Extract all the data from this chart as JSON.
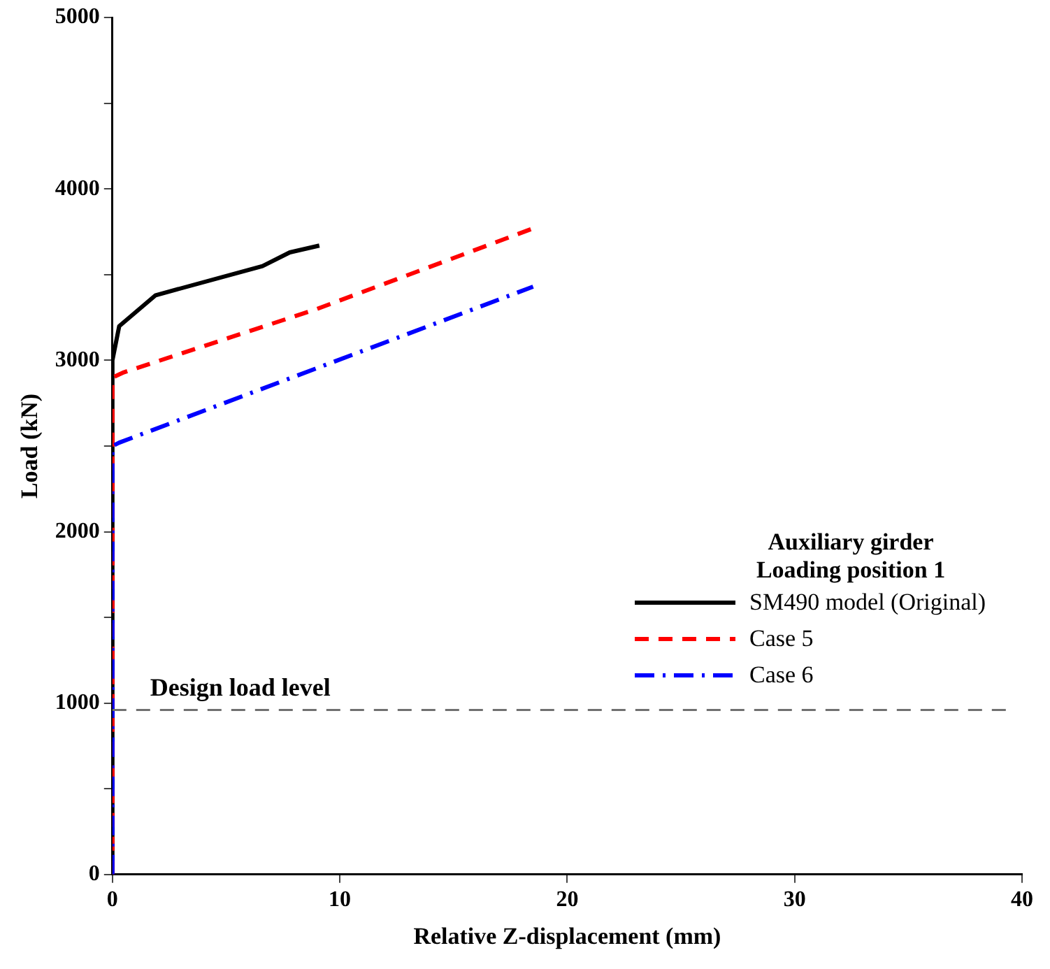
{
  "chart_data": {
    "type": "line",
    "xlabel": "Relative Z-displacement (mm)",
    "ylabel": "Load (kN)",
    "legend_title": "Auxiliary girder\nLoading position 1",
    "xlim": [
      0,
      40
    ],
    "xticks": [
      0,
      10,
      20,
      30,
      40
    ],
    "ylim": [
      0,
      5000
    ],
    "yticks": [
      0,
      {
        "value": 500,
        "label": null
      },
      1000,
      {
        "value": 1500,
        "label": null
      },
      2000,
      {
        "value": 2500,
        "label": null
      },
      3000,
      {
        "value": 3500,
        "label": null
      },
      4000,
      {
        "value": 4500,
        "label": null
      },
      5000
    ],
    "grid": false,
    "legend": "right",
    "marker": "none",
    "series": [
      {
        "name": "SM490 model (Original)",
        "color": "#000000",
        "line_style": "solid",
        "x": [
          0,
          0,
          0.3,
          1.9,
          6.6,
          7.8,
          9.1
        ],
        "values": [
          0,
          3000,
          3200,
          3380,
          3550,
          3630,
          3670
        ]
      },
      {
        "name": "Case 5",
        "color": "#ff0000",
        "line_style": "dashed",
        "x": [
          0,
          0,
          0.5,
          9,
          18.5
        ],
        "values": [
          0,
          2900,
          2930,
          3300,
          3770
        ]
      },
      {
        "name": "Case 6",
        "color": "#0000ff",
        "line_style": "dashdot",
        "x": [
          0,
          0,
          0.3,
          18.5
        ],
        "values": [
          0,
          2500,
          2520,
          3430
        ]
      }
    ],
    "ref_lines": [
      {
        "axis": "y",
        "value": 960,
        "label": "Design load level",
        "color": "#707070",
        "line_style": "dashed"
      }
    ]
  }
}
